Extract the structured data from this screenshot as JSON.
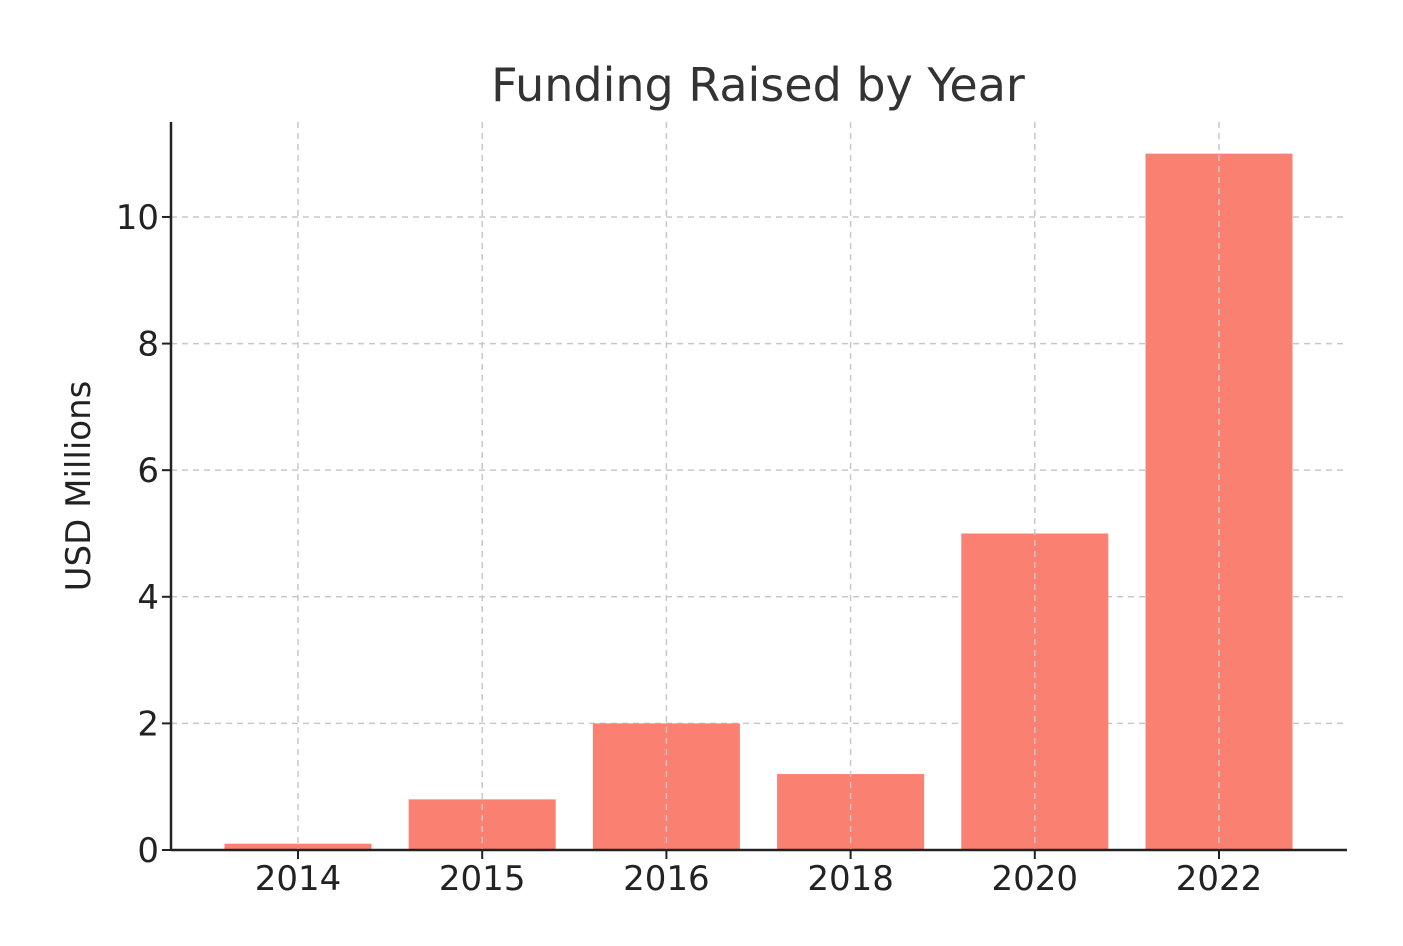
{
  "chart_data": {
    "type": "bar",
    "title": "Funding Raised by Year",
    "xlabel": "",
    "ylabel": "USD Millions",
    "categories": [
      "2014",
      "2015",
      "2016",
      "2018",
      "2020",
      "2022"
    ],
    "values": [
      0.1,
      0.8,
      2,
      1.2,
      5,
      11
    ],
    "ylim": [
      0,
      11.5
    ],
    "yticks": [
      0,
      2,
      4,
      6,
      8,
      10
    ],
    "bar_color": "#FA8072",
    "grid": true
  }
}
